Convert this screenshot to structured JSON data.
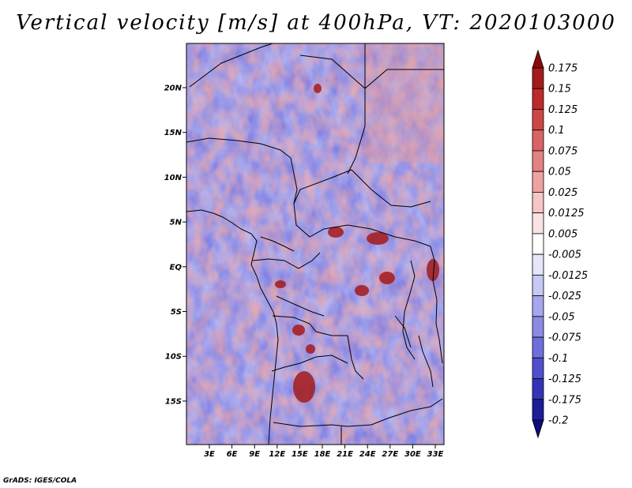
{
  "title": "Vertical velocity [m/s] at 400hPa, VT: 2020103000",
  "credit": "GrADS: IGES/COLA",
  "map": {
    "lon_labels": [
      "3E",
      "6E",
      "9E",
      "12E",
      "15E",
      "18E",
      "21E",
      "24E",
      "27E",
      "30E",
      "33E"
    ],
    "lat_labels": [
      "20N",
      "15N",
      "10N",
      "5N",
      "EQ",
      "5S",
      "10S",
      "15S"
    ]
  },
  "colorbar": {
    "labels": [
      "0.175",
      "0.15",
      "0.125",
      "0.1",
      "0.075",
      "0.05",
      "0.025",
      "0.0125",
      "0.005",
      "-0.005",
      "-0.0125",
      "-0.025",
      "-0.05",
      "-0.075",
      "-0.1",
      "-0.125",
      "-0.175",
      "-0.2"
    ],
    "colors": [
      "#8b0a0a",
      "#a51a1a",
      "#bd2a2a",
      "#cf4646",
      "#da6464",
      "#e48282",
      "#eea3a3",
      "#f6c6c6",
      "#fbe3e3",
      "#ffffff",
      "#e5e5fb",
      "#c8c8f4",
      "#a7a7ee",
      "#8b8be6",
      "#6e6edc",
      "#5050ce",
      "#3434b8",
      "#1d1d9a",
      "#0c0c7e"
    ]
  },
  "colors": {
    "positive": "#cc3333",
    "negative": "#3333cc"
  }
}
